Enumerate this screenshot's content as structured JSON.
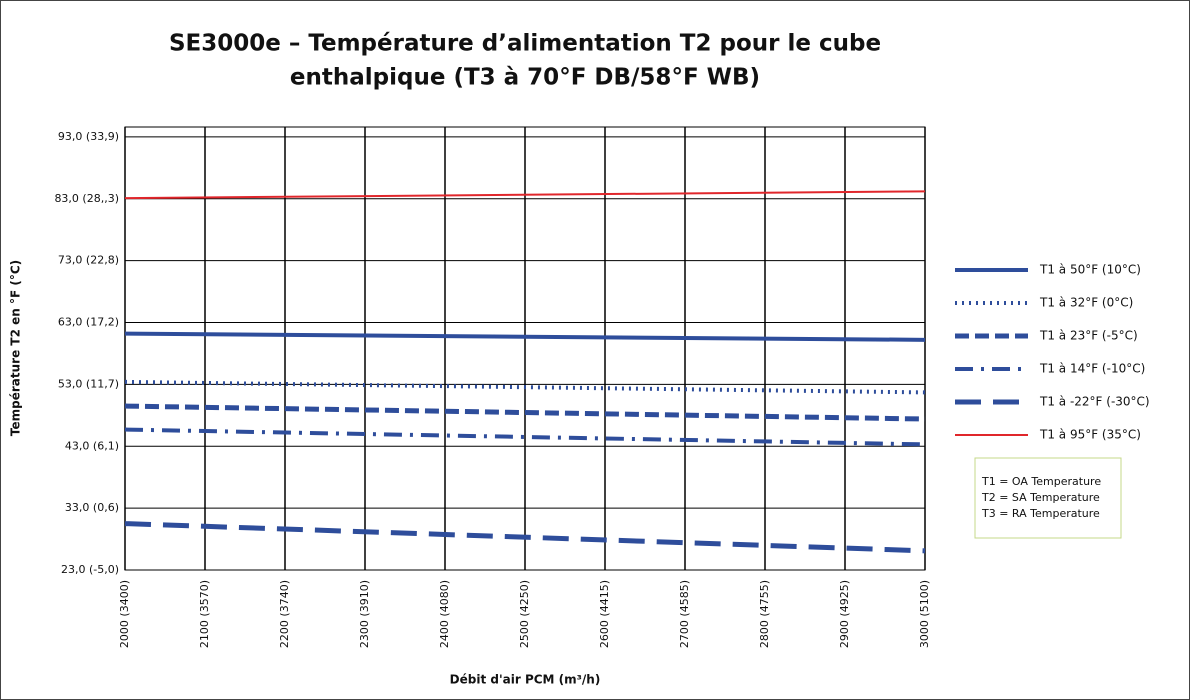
{
  "chart_data": {
    "type": "line",
    "title": [
      "SE3000e – Température d’alimentation T2 pour le cube",
      "enthalpique (T3 à 70°F DB/58°F WB)"
    ],
    "x_label": "Débit d'air PCM (m³/h)",
    "y_label": "Température T2 en °F (°C)",
    "x": [
      2000,
      3000
    ],
    "xlim": [
      2000,
      3000
    ],
    "xticks": [
      {
        "value": 2000,
        "label": "2000 (3400)"
      },
      {
        "value": 2100,
        "label": "2100 (3570)"
      },
      {
        "value": 2200,
        "label": "2200 (3740)"
      },
      {
        "value": 2300,
        "label": "2300 (3910)"
      },
      {
        "value": 2400,
        "label": "2400 (4080)"
      },
      {
        "value": 2500,
        "label": "2500 (4250)"
      },
      {
        "value": 2600,
        "label": "2600 (4415)"
      },
      {
        "value": 2700,
        "label": "2700 (4585)"
      },
      {
        "value": 2800,
        "label": "2800 (4755)"
      },
      {
        "value": 2900,
        "label": "2900 (4925)"
      },
      {
        "value": 3000,
        "label": "3000 (5100)"
      }
    ],
    "ylim": [
      23,
      94.6
    ],
    "yticks": [
      {
        "value": 23,
        "label": "23,0 (-5,0)"
      },
      {
        "value": 33,
        "label": "33,0 (0,6)"
      },
      {
        "value": 43,
        "label": "43,0 (6,1)"
      },
      {
        "value": 53,
        "label": "53,0 (11,7)"
      },
      {
        "value": 63,
        "label": "63,0 (17,2)"
      },
      {
        "value": 73,
        "label": "73,0 (22,8)"
      },
      {
        "value": 83,
        "label": "83,0 (28,,3)"
      },
      {
        "value": 93,
        "label": "93,0 (33,9)"
      }
    ],
    "grid": true,
    "legend": "right",
    "series": [
      {
        "name": "T1 à 50°F (10°C)",
        "color": "#2e4d9b",
        "dash": "solid",
        "values": [
          61.2,
          60.2
        ]
      },
      {
        "name": "T1 à 32°F (0°C)",
        "color": "#2e4d9b",
        "dash": "dotted",
        "values": [
          53.4,
          51.7
        ]
      },
      {
        "name": "T1 à 23°F (-5°C)",
        "color": "#2e4d9b",
        "dash": "dashed",
        "values": [
          49.5,
          47.4
        ]
      },
      {
        "name": "T1 à 14°F (-10°C)",
        "color": "#2e4d9b",
        "dash": "dashdot",
        "values": [
          45.7,
          43.3
        ]
      },
      {
        "name": "T1 à -22°F (-30°C)",
        "color": "#2e4d9b",
        "dash": "longdash",
        "values": [
          30.5,
          26.1
        ]
      },
      {
        "name": "T1 à 95°F (35°C)",
        "color": "#e0262b",
        "dash": "thin",
        "values": [
          83.1,
          84.2
        ]
      }
    ],
    "notes": [
      "T1 = OA Temperature",
      "T2 = SA Temperature",
      "T3 = RA Temperature"
    ]
  }
}
